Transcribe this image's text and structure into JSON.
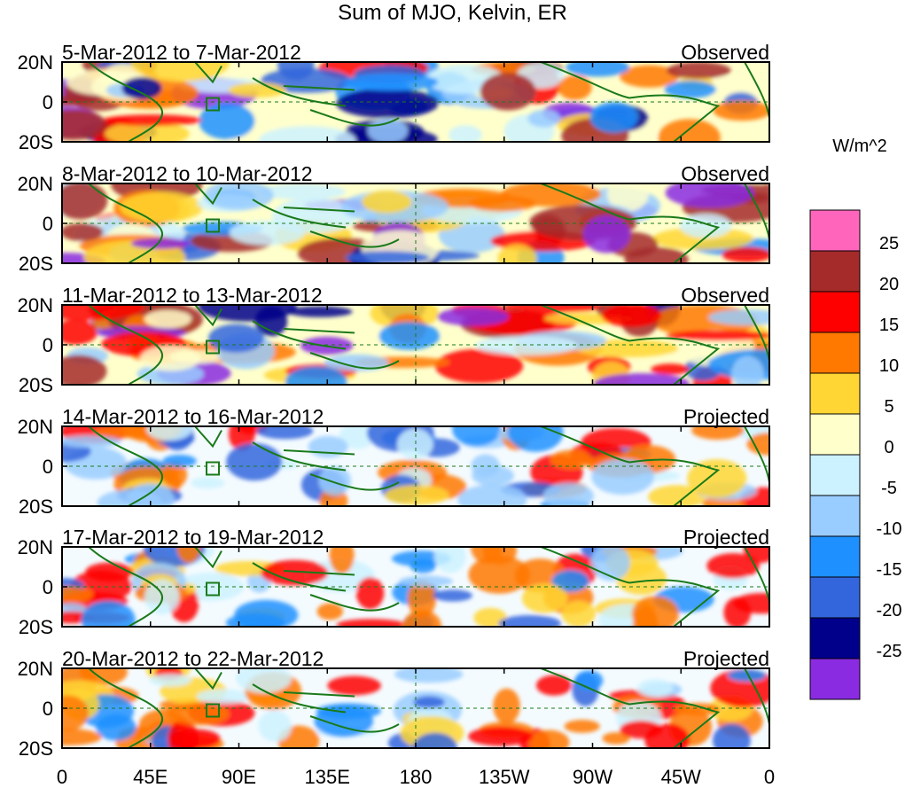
{
  "title": "Sum of MJO, Kelvin, ER",
  "units": "W/m^2",
  "panels": [
    {
      "date_range": "5-Mar-2012 to 7-Mar-2012",
      "status": "Observed"
    },
    {
      "date_range": "8-Mar-2012 to 10-Mar-2012",
      "status": "Observed"
    },
    {
      "date_range": "11-Mar-2012 to 13-Mar-2012",
      "status": "Observed"
    },
    {
      "date_range": "14-Mar-2012 to 16-Mar-2012",
      "status": "Projected"
    },
    {
      "date_range": "17-Mar-2012 to 19-Mar-2012",
      "status": "Projected"
    },
    {
      "date_range": "20-Mar-2012 to 22-Mar-2012",
      "status": "Projected"
    }
  ],
  "lat_labels": [
    "20N",
    "0",
    "20S"
  ],
  "lon_labels": [
    "0",
    "45E",
    "90E",
    "135E",
    "180",
    "135W",
    "90W",
    "45W",
    "0"
  ],
  "colorbar": {
    "labels": [
      "25",
      "20",
      "15",
      "10",
      "5",
      "0",
      "-5",
      "-10",
      "-15",
      "-20",
      "-25"
    ],
    "colors": [
      "#ff66bb",
      "#a52a2a",
      "#ff0000",
      "#ff7800",
      "#ffd633",
      "#ffffcc",
      "#ccf2ff",
      "#99ccff",
      "#1e90ff",
      "#3366dd",
      "#00008b",
      "#8a2be2"
    ]
  },
  "colors": {
    "coast": "#1a7a1a",
    "dashed_line": "#1a7a1a"
  }
}
